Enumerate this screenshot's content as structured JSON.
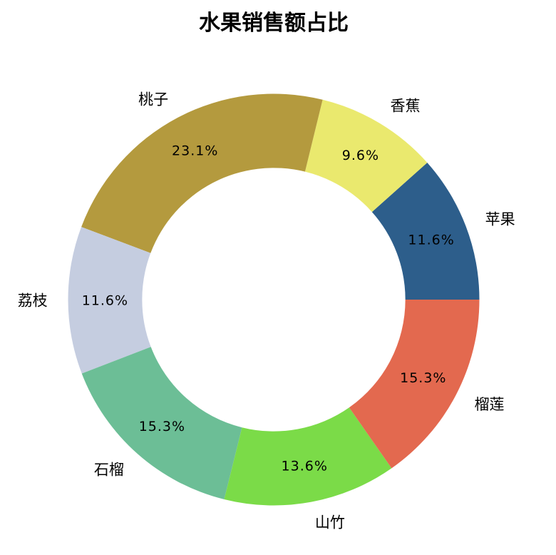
{
  "title": "水果销售额占比",
  "colors": {
    "background": "#ffffff",
    "text": "#000000"
  },
  "chart_data": {
    "type": "pie",
    "subtype": "donut",
    "title": "水果销售额占比",
    "legend": "none",
    "start_angle": 0,
    "direction": "counterclockwise",
    "inner_radius_ratio": 0.64,
    "segments": [
      {
        "label": "苹果",
        "value": 11.6,
        "pct_label": "11.6%",
        "color": "#2D5E8B"
      },
      {
        "label": "香蕉",
        "value": 9.6,
        "pct_label": "9.6%",
        "color": "#EAE96E"
      },
      {
        "label": "桃子",
        "value": 23.1,
        "pct_label": "23.1%",
        "color": "#B49A3E"
      },
      {
        "label": "荔枝",
        "value": 11.6,
        "pct_label": "11.6%",
        "color": "#C5CDE0"
      },
      {
        "label": "石榴",
        "value": 15.3,
        "pct_label": "15.3%",
        "color": "#6CBE96"
      },
      {
        "label": "山竹",
        "value": 13.6,
        "pct_label": "13.6%",
        "color": "#7BDB48"
      },
      {
        "label": "榴莲",
        "value": 15.3,
        "pct_label": "15.3%",
        "color": "#E3694F"
      }
    ]
  }
}
